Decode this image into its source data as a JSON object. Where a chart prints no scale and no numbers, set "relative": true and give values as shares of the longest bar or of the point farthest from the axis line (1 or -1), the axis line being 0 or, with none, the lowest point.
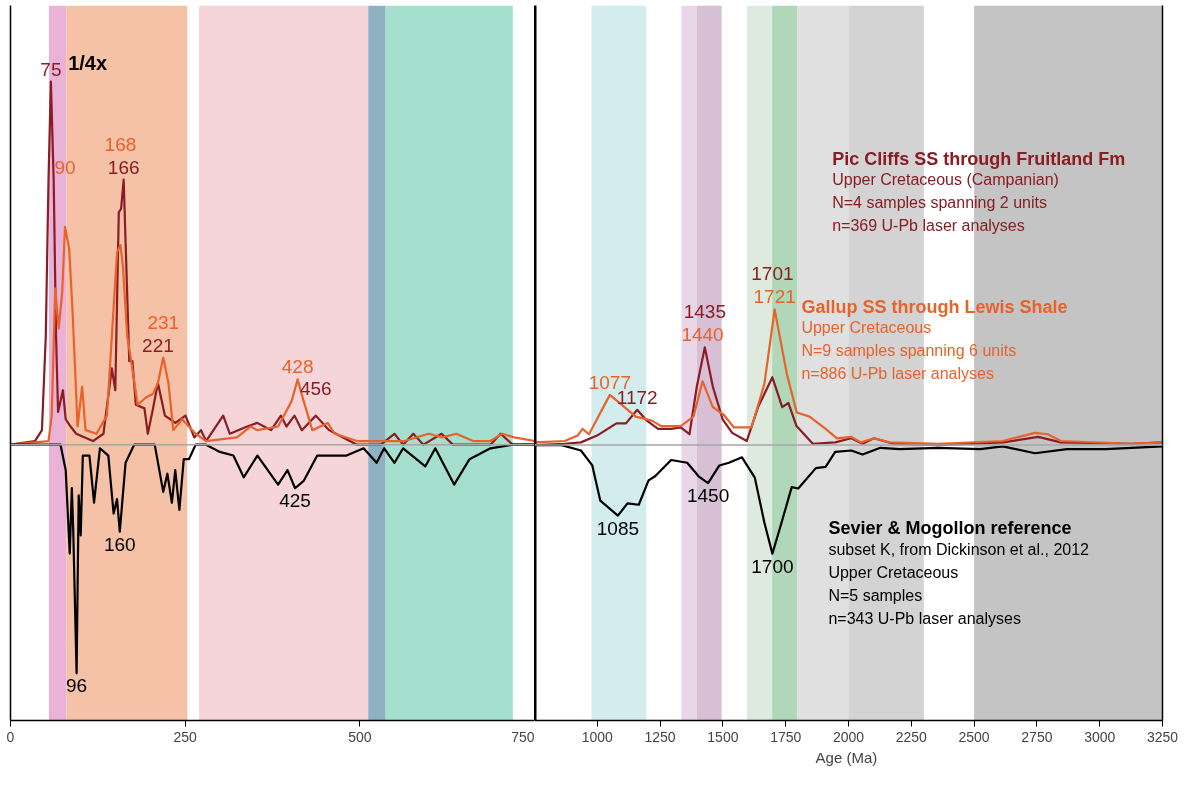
{
  "chart_data": [
    {
      "type": "line",
      "relative": true,
      "xlim": [
        0,
        750
      ],
      "xticks": [
        0,
        250,
        500,
        750
      ],
      "bands": [
        {
          "axis": "x",
          "from": 55,
          "to": 80,
          "color": "#e9b2d6"
        },
        {
          "axis": "x",
          "from": 80,
          "to": 253,
          "color": "#f5c1a7"
        },
        {
          "axis": "x",
          "from": 270,
          "to": 512,
          "color": "#f5d5d8"
        },
        {
          "axis": "x",
          "from": 512,
          "to": 537,
          "color": "#8fb2c2"
        },
        {
          "axis": "x",
          "from": 537,
          "to": 719,
          "color": "#a5dfce"
        }
      ],
      "ref_lines": [
        {
          "axis": "y",
          "value": 0,
          "color": "#a6a6a6"
        }
      ],
      "annotations": [
        "1/4x",
        {
          "text": "75",
          "x": 57.8,
          "y": 1.0
        },
        {
          "text": "166",
          "x": 162,
          "y": 0.73
        },
        {
          "text": "221",
          "x": 211,
          "y": 0.17
        },
        {
          "text": "456",
          "x": 437,
          "y": 0.08
        },
        {
          "text": "90",
          "x": 78,
          "y": 0.6
        },
        {
          "text": "168",
          "x": 157.4,
          "y": 0.73
        },
        {
          "text": "231",
          "x": 218.6,
          "y": 0.24
        },
        {
          "text": "428",
          "x": 411,
          "y": 0.18
        },
        {
          "text": "96",
          "x": 94.6,
          "y": -0.63
        },
        {
          "text": "160",
          "x": 156.4,
          "y": -0.24
        },
        {
          "text": "425",
          "x": 407.3,
          "y": -0.12
        }
      ],
      "series": [
        {
          "color": "#8a1c24",
          "x": [
            0,
            35,
            45,
            50.5,
            54.4,
            57.8,
            61.8,
            65.2,
            68.1,
            71.6,
            75,
            79,
            86,
            94,
            118,
            133,
            145,
            150,
            155,
            158.3,
            162,
            165,
            170,
            174.5,
            179.4,
            191.7,
            196.6,
            204,
            211,
            221,
            236,
            250.5,
            263,
            272.6,
            280,
            304.4,
            314,
            338.7,
            353,
            363,
            373,
            387,
            395,
            406.5,
            417,
            437,
            456,
            476,
            496,
            530,
            549.5,
            562,
            576.5,
            591,
            617,
            633,
            687,
            701.5,
            718.6,
            750
          ],
          "values": [
            0,
            0.01,
            0.04,
            0.3,
            0.73,
            1.0,
            0.73,
            0.3,
            0.09,
            0.12,
            0.15,
            0.07,
            0.05,
            0.03,
            0.01,
            0.03,
            0.21,
            0.15,
            0.64,
            0.65,
            0.73,
            0.54,
            0.23,
            0.23,
            0.11,
            0.1,
            0.03,
            0.1,
            0.17,
            0.08,
            0.06,
            0.08,
            0.02,
            0.04,
            0.01,
            0.08,
            0.03,
            0.05,
            0.06,
            0.05,
            0.04,
            0.08,
            0.05,
            0.08,
            0.04,
            0.08,
            0.04,
            0.02,
            0.0,
            0,
            0.03,
            0.0,
            0.03,
            0.0,
            0.03,
            0.0,
            0.0,
            0.03,
            0,
            0
          ]
        },
        {
          "color": "#e8632b",
          "x": [
            0,
            54.4,
            59,
            64,
            69,
            74,
            78,
            84,
            89,
            96,
            102.5,
            107.4,
            123,
            138,
            152.5,
            157.4,
            161,
            167,
            172,
            182,
            194,
            204,
            211,
            218.6,
            226,
            233,
            245.6,
            265,
            280,
            324,
            343.6,
            353,
            383,
            402.4,
            411,
            419.6,
            432,
            454,
            464,
            496,
            540,
            564,
            598.5,
            618,
            638,
            662,
            687,
            704,
            721,
            750
          ],
          "values": [
            0,
            0.01,
            0.08,
            0.43,
            0.32,
            0.42,
            0.6,
            0.54,
            0.36,
            0.05,
            0.16,
            0.04,
            0.03,
            0.08,
            0.53,
            0.55,
            0.49,
            0.3,
            0.24,
            0.11,
            0.13,
            0.14,
            0.17,
            0.24,
            0.17,
            0.04,
            0.07,
            0.03,
            0.01,
            0.02,
            0.05,
            0.04,
            0.05,
            0.12,
            0.18,
            0.12,
            0.04,
            0.06,
            0.03,
            0.01,
            0.01,
            0.01,
            0.03,
            0.02,
            0.03,
            0.01,
            0.01,
            0.03,
            0.02,
            0.01
          ]
        },
        {
          "color": "#000000",
          "x": [
            0,
            71.6,
            79,
            84.8,
            87.8,
            89.7,
            94.6,
            97.6,
            100.5,
            103.5,
            113,
            119.6,
            128,
            140,
            147.6,
            152.5,
            156.4,
            164.7,
            177,
            206.4,
            218.6,
            224.5,
            231,
            235.8,
            241.7,
            248,
            255.4,
            265,
            280,
            299.6,
            319,
            333.8,
            353.4,
            383,
            396.5,
            407.3,
            419.6,
            439,
            481,
            505.4,
            524,
            534.8,
            549.5,
            562,
            593.6,
            608,
            635,
            657,
            687,
            718.6,
            750
          ],
          "values": [
            0,
            0,
            -0.07,
            -0.3,
            -0.12,
            -0.23,
            -0.63,
            -0.14,
            -0.25,
            -0.03,
            -0.03,
            -0.16,
            -0.01,
            -0.03,
            -0.19,
            -0.15,
            -0.24,
            -0.05,
            0,
            0,
            -0.13,
            -0.08,
            -0.16,
            -0.07,
            -0.18,
            -0.04,
            -0.04,
            0,
            0,
            -0.02,
            -0.03,
            -0.09,
            -0.03,
            -0.11,
            -0.07,
            -0.12,
            -0.1,
            -0.03,
            -0.03,
            -0.01,
            -0.05,
            -0.01,
            -0.05,
            -0.01,
            -0.06,
            -0.01,
            -0.11,
            -0.04,
            -0.01,
            0,
            0
          ]
        }
      ]
    },
    {
      "type": "line",
      "relative": true,
      "xlim": [
        750,
        3250
      ],
      "xticks": [
        1000,
        1250,
        1500,
        1750,
        2000,
        2250,
        2500,
        2750,
        3000,
        3250
      ],
      "xlabel": "Age  (Ma)",
      "bands": [
        {
          "axis": "x",
          "from": 977,
          "to": 1195,
          "color": "#d3ecee"
        },
        {
          "axis": "x",
          "from": 1335,
          "to": 1396,
          "color": "#e9d6e9"
        },
        {
          "axis": "x",
          "from": 1396,
          "to": 1495,
          "color": "#d7bfd5"
        },
        {
          "axis": "x",
          "from": 1596,
          "to": 1696,
          "color": "#dfeadf"
        },
        {
          "axis": "x",
          "from": 1696,
          "to": 1797,
          "color": "#b0d7b8"
        },
        {
          "axis": "x",
          "from": 1797,
          "to": 1999,
          "color": "#e0e0e0"
        },
        {
          "axis": "x",
          "from": 1999,
          "to": 2300,
          "color": "#d3d3d3"
        },
        {
          "axis": "x",
          "from": 2500,
          "to": 3250,
          "color": "#c4c4c4"
        }
      ],
      "ref_lines": [
        {
          "axis": "y",
          "value": 0,
          "color": "#a6a6a6"
        }
      ],
      "annotations": [
        "Upper Cretaceous (Campanian)\nN=4 samples spanning 2 units\nn=369 U-Pb laser analyses",
        "Upper Cretaceous\nN=9 samples spanning 6 units\nn=886 U-Pb laser analyses",
        "subset K, from Dickinson et al., 2012\nUpper Cretaceous\nN=5 samples\nn=343 U-Pb laser analyses",
        {
          "text": "1172",
          "x": 1159,
          "y": 0.26
        },
        {
          "text": "1435",
          "x": 1428,
          "y": 0.72
        },
        {
          "text": "1721",
          "x": 1706,
          "y": 1.0
        },
        {
          "text": "1701",
          "x": 1697,
          "y": 1.0
        },
        {
          "text": "1077",
          "x": 1050,
          "y": 0.37
        },
        {
          "text": "1440",
          "x": 1419,
          "y": 0.47
        },
        {
          "text": "1085",
          "x": 1082,
          "y": -0.52
        },
        {
          "text": "1450",
          "x": 1441,
          "y": -0.28
        },
        {
          "text": "1700",
          "x": 1697,
          "y": -0.8
        }
      ],
      "series": [
        {
          "name": "Pic Cliffs SS through Fruitland Fm",
          "color": "#8a1c24",
          "x": [
            750,
            870,
            935,
            999,
            1076,
            1114,
            1159,
            1197,
            1242,
            1294,
            1332,
            1367,
            1396,
            1428,
            1460,
            1499,
            1537,
            1595,
            1640,
            1697,
            1736,
            1761,
            1793,
            1858,
            1947,
            2011,
            2056,
            2101,
            2178,
            2358,
            2614,
            2755,
            2845,
            3127,
            3250
          ],
          "values": [
            0,
            0.01,
            0.02,
            0.07,
            0.16,
            0.16,
            0.26,
            0.18,
            0.12,
            0.12,
            0.13,
            0.08,
            0.43,
            0.72,
            0.43,
            0.19,
            0.09,
            0.03,
            0.28,
            0.5,
            0.28,
            0.31,
            0.14,
            0.01,
            0.02,
            0.05,
            0.01,
            0.05,
            0.01,
            0,
            0.02,
            0.06,
            0.02,
            0.01,
            0.02
          ]
        },
        {
          "name": "Gallup SS through Lewis Shale",
          "color": "#e8632b",
          "x": [
            750,
            870,
            922,
            941,
            967,
            1050,
            1082,
            1153,
            1217,
            1255,
            1294,
            1332,
            1383,
            1419,
            1460,
            1505,
            1544,
            1614,
            1665,
            1706,
            1755,
            1794,
            1845,
            1909,
            1954,
            2011,
            2050,
            2101,
            2165,
            2358,
            2614,
            2742,
            2794,
            2845,
            3127,
            3250
          ],
          "values": [
            0.02,
            0.03,
            0.07,
            0.12,
            0.08,
            0.37,
            0.32,
            0.21,
            0.18,
            0.14,
            0.14,
            0.14,
            0.21,
            0.47,
            0.28,
            0.22,
            0.13,
            0.13,
            0.45,
            1.0,
            0.52,
            0.24,
            0.21,
            0.12,
            0.05,
            0.06,
            0.02,
            0.05,
            0.02,
            0.01,
            0.03,
            0.09,
            0.08,
            0.03,
            0.01,
            0.02
          ]
        },
        {
          "name": "Sevier & Mogollon reference",
          "color": "#000000",
          "x": [
            750,
            858,
            935,
            980,
            1012,
            1082,
            1120,
            1165,
            1204,
            1230,
            1294,
            1358,
            1403,
            1441,
            1486,
            1524,
            1576,
            1627,
            1665,
            1697,
            1729,
            1774,
            1800,
            1870,
            1909,
            1947,
            2011,
            2056,
            2127,
            2204,
            2358,
            2524,
            2614,
            2742,
            2870,
            3024,
            3250
          ],
          "values": [
            0,
            0,
            -0.04,
            -0.15,
            -0.41,
            -0.52,
            -0.43,
            -0.44,
            -0.26,
            -0.23,
            -0.11,
            -0.13,
            -0.23,
            -0.28,
            -0.15,
            -0.13,
            -0.09,
            -0.24,
            -0.57,
            -0.8,
            -0.6,
            -0.31,
            -0.32,
            -0.17,
            -0.16,
            -0.05,
            -0.04,
            -0.07,
            -0.02,
            -0.03,
            -0.02,
            -0.03,
            -0.01,
            -0.06,
            -0.03,
            -0.03,
            -0.01
          ]
        }
      ]
    }
  ]
}
